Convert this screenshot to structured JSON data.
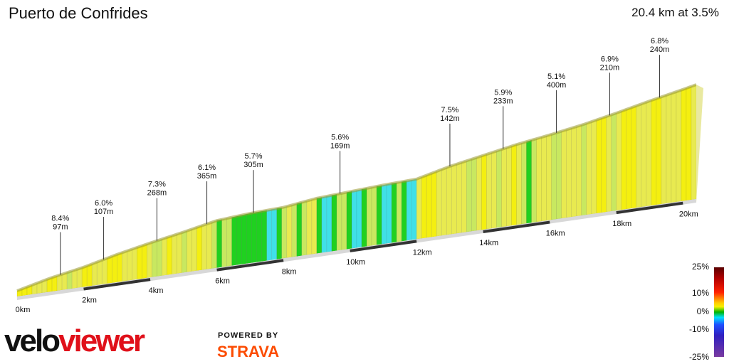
{
  "header": {
    "title": "Puerto de Confrides",
    "summary": "20.4 km at 3.5%"
  },
  "chart_data": {
    "type": "area",
    "title": "Puerto de Confrides",
    "x_unit": "km",
    "distance_km": 20.4,
    "avg_gradient_pct": 3.5,
    "x_ticks": [
      "0km",
      "2km",
      "4km",
      "6km",
      "8km",
      "10km",
      "12km",
      "14km",
      "16km",
      "18km",
      "20km"
    ],
    "x_tick_values": [
      0,
      2,
      4,
      6,
      8,
      10,
      12,
      14,
      16,
      18,
      20
    ],
    "segments": [
      {
        "grade": "8.4%",
        "length": "97m",
        "km": 1.3
      },
      {
        "grade": "6.0%",
        "length": "107m",
        "km": 2.6
      },
      {
        "grade": "7.3%",
        "length": "268m",
        "km": 4.2
      },
      {
        "grade": "6.1%",
        "length": "365m",
        "km": 5.7
      },
      {
        "grade": "5.7%",
        "length": "305m",
        "km": 7.1
      },
      {
        "grade": "5.6%",
        "length": "169m",
        "km": 9.7
      },
      {
        "grade": "7.5%",
        "length": "142m",
        "km": 13.0
      },
      {
        "grade": "5.9%",
        "length": "233m",
        "km": 14.6
      },
      {
        "grade": "5.1%",
        "length": "400m",
        "km": 16.2
      },
      {
        "grade": "6.9%",
        "length": "210m",
        "km": 17.8
      },
      {
        "grade": "6.8%",
        "length": "240m",
        "km": 19.3
      }
    ],
    "profile": {
      "km": [
        0,
        1,
        2,
        3,
        4,
        5,
        6,
        7,
        8,
        9,
        10,
        11,
        12,
        13,
        14,
        15,
        16,
        17,
        18,
        19,
        20,
        20.4
      ],
      "gradient_pct": [
        5.5,
        6.5,
        5,
        6.5,
        5.5,
        5,
        5.5,
        2,
        1,
        3.5,
        1.5,
        1.5,
        1,
        6.5,
        5,
        5,
        4,
        4.5,
        5.5,
        6,
        5.5,
        6
      ]
    }
  },
  "legend": {
    "labels": [
      "25%",
      "10%",
      "0%",
      "-10%",
      "-25%"
    ],
    "colors": [
      "#5a0000",
      "#ff2200",
      "#f6f000",
      "#00b400",
      "#00e0ff",
      "#2050ff",
      "#7a3aa0"
    ]
  },
  "branding": {
    "logo_velo": "velo",
    "logo_viewer": "viewer",
    "powered_by": "POWERED BY",
    "strava": "STRAVA"
  }
}
